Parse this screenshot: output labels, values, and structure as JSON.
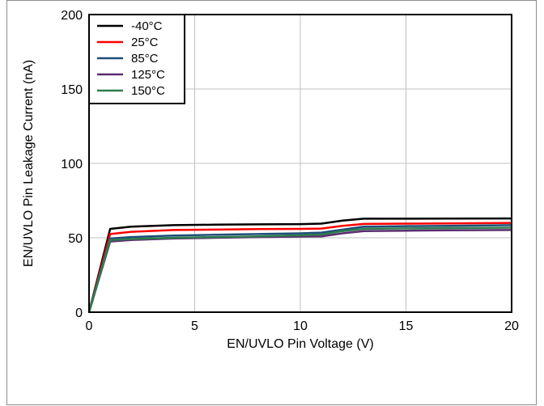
{
  "chart_data": {
    "type": "line",
    "xlabel": "EN/UVLO Pin Voltage (V)",
    "ylabel": "EN/UVLO Pin Leakage Current (nA)",
    "xlim": [
      0,
      20
    ],
    "ylim": [
      0,
      200
    ],
    "xticks": [
      0,
      5,
      10,
      15,
      20
    ],
    "yticks": [
      0,
      50,
      100,
      150,
      200
    ],
    "grid": true,
    "legend_position": "top-left",
    "series": [
      {
        "name": "-40°C",
        "color": "#000000",
        "x": [
          0,
          1,
          2,
          4,
          6,
          8,
          10,
          11,
          12,
          13,
          15,
          17,
          20
        ],
        "y": [
          0,
          56,
          57.5,
          58.5,
          58.8,
          59,
          59.2,
          59.5,
          61.5,
          62.8,
          62.8,
          62.9,
          63
        ]
      },
      {
        "name": "25°C",
        "color": "#ff0000",
        "x": [
          0,
          1,
          2,
          4,
          6,
          8,
          10,
          11,
          12,
          13,
          15,
          17,
          20
        ],
        "y": [
          0,
          52.5,
          54,
          55.2,
          55.5,
          55.8,
          56,
          56.2,
          58,
          59.3,
          59.5,
          59.7,
          60
        ]
      },
      {
        "name": "85°C",
        "color": "#1f4e79",
        "x": [
          0,
          1,
          2,
          4,
          6,
          8,
          10,
          11,
          12,
          13,
          15,
          17,
          20
        ],
        "y": [
          0,
          49.5,
          50.5,
          51.5,
          52,
          52.5,
          53,
          53.5,
          55.5,
          57.5,
          57.8,
          58,
          58.5
        ]
      },
      {
        "name": "125°C",
        "color": "#5b2c6f",
        "x": [
          0,
          1,
          2,
          4,
          6,
          8,
          10,
          11,
          12,
          13,
          15,
          17,
          20
        ],
        "y": [
          0,
          47.5,
          48.5,
          49.5,
          50,
          50.5,
          50.8,
          51,
          53,
          54.5,
          54.8,
          55,
          55.2
        ]
      },
      {
        "name": "150°C",
        "color": "#2e7d4f",
        "x": [
          0,
          1,
          2,
          4,
          6,
          8,
          10,
          11,
          12,
          13,
          15,
          17,
          20
        ],
        "y": [
          0,
          48.5,
          49.2,
          50,
          50.5,
          51,
          51.8,
          52.2,
          54.5,
          56,
          56.3,
          56.5,
          56.8
        ]
      }
    ]
  }
}
